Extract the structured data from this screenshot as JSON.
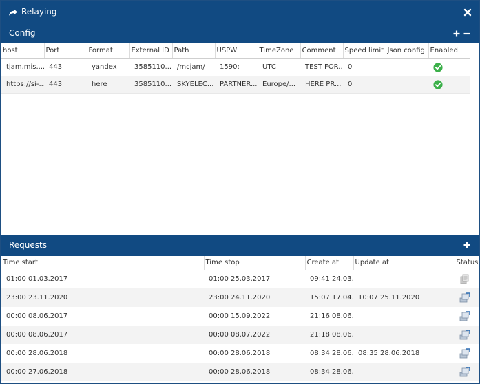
{
  "window": {
    "title": "Relaying"
  },
  "config": {
    "title": "Config",
    "columns": [
      "host",
      "Port",
      "Format",
      "External ID",
      "Path",
      "USPW",
      "TimeZone",
      "Comment",
      "Speed limit",
      "Json config",
      "Enabled"
    ],
    "rows": [
      {
        "host": "tjam.mis....",
        "port": "443",
        "format": "yandex",
        "external_id": "3585110...",
        "path": "/mcjam/",
        "uspw": "1590:",
        "timezone": "UTC",
        "comment": "TEST FOR...",
        "speed_limit": "0",
        "json_config": "",
        "enabled": "check-icon"
      },
      {
        "host": "https://si-...",
        "port": "443",
        "format": "here",
        "external_id": "3585110...",
        "path": "SKYELEC...",
        "uspw": "PARTNER...",
        "timezone": "Europe/...",
        "comment": "HERE PR...",
        "speed_limit": "0",
        "json_config": "",
        "enabled": "check-icon"
      }
    ]
  },
  "requests": {
    "title": "Requests",
    "columns": [
      "Time start",
      "Time stop",
      "Create at",
      "Update at",
      "Status"
    ],
    "rows": [
      {
        "time_start": "01:00 01.03.2017",
        "time_stop": "01:00 25.03.2017",
        "create_at": "09:41 24.03...",
        "update_at": "",
        "status": "pending-icon"
      },
      {
        "time_start": "23:00 23.11.2020",
        "time_stop": "23:00 24.11.2020",
        "create_at": "15:07 17.04...",
        "update_at": "10:07 25.11.2020",
        "status": "sent-icon"
      },
      {
        "time_start": "00:00 08.06.2017",
        "time_stop": "00:00 15.09.2022",
        "create_at": "21:16 08.06...",
        "update_at": "",
        "status": "sent-icon"
      },
      {
        "time_start": "00:00 08.06.2017",
        "time_stop": "00:00 08.07.2022",
        "create_at": "21:18 08.06...",
        "update_at": "",
        "status": "sent-icon"
      },
      {
        "time_start": "00:00 28.06.2018",
        "time_stop": "00:00 28.06.2018",
        "create_at": "08:34 28.06...",
        "update_at": "08:35 28.06.2018",
        "status": "sent-icon"
      },
      {
        "time_start": "00:00 27.06.2018",
        "time_stop": "00:00 28.06.2018",
        "create_at": "08:34 28.06...",
        "update_at": "",
        "status": "sent-icon"
      }
    ]
  },
  "colors": {
    "header_blue": "#114a82",
    "check_green": "#3cb04a",
    "row_alt": "#f3f3f3"
  }
}
